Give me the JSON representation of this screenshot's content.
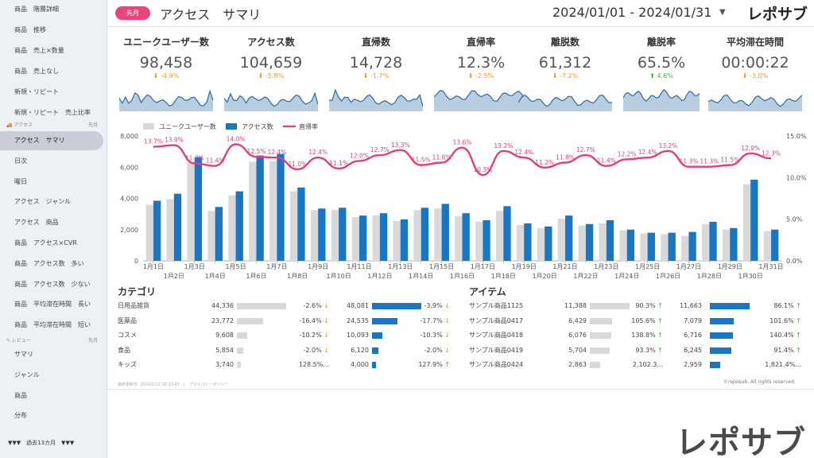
{
  "sidebar": {
    "items_top": [
      "商品　階層詳細",
      "商品　推移",
      "商品　売上×数量",
      "商品　売上なし",
      "新規・リピート",
      "新規・リピート　売上比率"
    ],
    "section_access": {
      "label": "アクセス",
      "period": "先月"
    },
    "items_access": [
      "アクセス　サマリ",
      "日次",
      "曜日",
      "アクセス　ジャンル",
      "アクセス　商品",
      "商品　アクセス×CVR",
      "商品　アクセス数　多い",
      "商品　アクセス数　少ない",
      "商品　平均滞在時間　長い",
      "商品　平均滞在時間　短い"
    ],
    "section_review": {
      "label": "レビュー",
      "period": "先月"
    },
    "items_review": [
      "サマリ",
      "ジャンル",
      "商品",
      "分布"
    ],
    "footer": "▼▼▼　過去13カ月　▼▼▼"
  },
  "header": {
    "badge": "先月",
    "title": "アクセス　サマリ",
    "date_range": "2024/01/01 - 2024/01/31",
    "brand": "レポサブ"
  },
  "kpis": [
    {
      "label": "ユニークユーザー数",
      "value": "98,458",
      "change": "-4.9%",
      "dir": "down"
    },
    {
      "label": "アクセス数",
      "value": "104,659",
      "change": "-5.8%",
      "dir": "down"
    },
    {
      "label": "直帰数",
      "value": "14,728",
      "change": "-1.7%",
      "dir": "down"
    },
    {
      "label": "直帰率",
      "value": "12.3%",
      "change": "-2.5%",
      "dir": "down"
    },
    {
      "label": "離脱数",
      "value": "61,312",
      "change": "-7.2%",
      "dir": "down"
    },
    {
      "label": "離脱率",
      "value": "65.5%",
      "change": "4.6%",
      "dir": "up"
    },
    {
      "label": "平均滞在時間",
      "value": "00:00:22",
      "change": "-3.0%",
      "dir": "down"
    }
  ],
  "chart_data": {
    "type": "bar",
    "categories": [
      "1月1日",
      "1月2日",
      "1月3日",
      "1月4日",
      "1月5日",
      "1月6日",
      "1月7日",
      "1月8日",
      "1月9日",
      "1月10日",
      "1月11日",
      "1月12日",
      "1月13日",
      "1月14日",
      "1月15日",
      "1月16日",
      "1月17日",
      "1月18日",
      "1月19日",
      "1月20日",
      "1月21日",
      "1月22日",
      "1月23日",
      "1月24日",
      "1月25日",
      "1月26日",
      "1月27日",
      "1月28日",
      "1月29日",
      "1月30日",
      "1月31日"
    ],
    "series": [
      {
        "name": "ユニークユーザー数",
        "type": "bar",
        "axis": "left",
        "color": "#d9d9d9",
        "values": [
          3600,
          3950,
          6350,
          3200,
          4200,
          6350,
          6400,
          4450,
          3250,
          3250,
          2800,
          2900,
          2550,
          3250,
          3350,
          2850,
          2500,
          3200,
          2300,
          2100,
          2700,
          2250,
          2400,
          1950,
          1750,
          1700,
          1600,
          2350,
          2000,
          4900,
          1900
        ]
      },
      {
        "name": "アクセス数",
        "type": "bar",
        "axis": "left",
        "color": "#1976c2",
        "values": [
          3850,
          4300,
          6650,
          3450,
          4450,
          6750,
          6850,
          4700,
          3350,
          3400,
          2900,
          3050,
          2650,
          3400,
          3650,
          3050,
          2600,
          3500,
          2400,
          2200,
          2900,
          2350,
          2600,
          2000,
          1800,
          1800,
          1850,
          2500,
          2100,
          5200,
          2000
        ]
      },
      {
        "name": "直帰率",
        "type": "line",
        "axis": "right",
        "color": "#e0407a",
        "values": [
          13.7,
          13.9,
          11.7,
          11.4,
          14.0,
          12.5,
          12.4,
          11.0,
          12.4,
          11.1,
          12.0,
          12.7,
          13.3,
          11.5,
          11.8,
          13.6,
          10.3,
          13.2,
          12.4,
          11.2,
          11.8,
          12.7,
          11.4,
          12.2,
          12.4,
          13.2,
          11.3,
          11.3,
          11.5,
          12.9,
          12.3
        ],
        "labels": [
          "13.7%",
          "13.9%",
          "11.7%",
          "11.4%",
          "14.0%",
          "12.5%",
          "12.4%",
          "11.0%",
          "12.4%",
          "11.1%",
          "12.0%",
          "12.7%",
          "13.3%",
          "11.5%",
          "11.8%",
          "13.6%",
          "10.3%",
          "13.2%",
          "12.4%",
          "11.2%",
          "11.8%",
          "12.7%",
          "11.4%",
          "12.2%",
          "12.4%",
          "13.2%",
          "11.3%",
          "11.3%",
          "11.5%",
          "12.9%",
          "12.3%"
        ]
      }
    ],
    "y_left": {
      "range": [
        0,
        8000
      ],
      "ticks": [
        "0",
        "2,000",
        "4,000",
        "6,000",
        "8,000"
      ]
    },
    "y_right": {
      "range": [
        0,
        15
      ],
      "ticks": [
        "0.0%",
        "5.0%",
        "10.0%",
        "15.0%"
      ]
    },
    "legend_placement": "top-left",
    "grid": false
  },
  "category_table": {
    "title": "カテゴリ",
    "rows": [
      {
        "name": "日用品雑貨",
        "v1": "44,336",
        "c1": "-2.6%",
        "d1": "down",
        "v2": "48,081",
        "c2": "-3.9%",
        "d2": "down",
        "f1": 1.0,
        "f2": 1.0
      },
      {
        "name": "医薬品",
        "v1": "23,772",
        "c1": "-16.4%",
        "d1": "down",
        "v2": "24,535",
        "c2": "-17.7%",
        "d2": "down",
        "f1": 0.536,
        "f2": 0.51
      },
      {
        "name": "コスメ",
        "v1": "9,608",
        "c1": "-10.2%",
        "d1": "down",
        "v2": "10,093",
        "c2": "-10.3%",
        "d2": "down",
        "f1": 0.217,
        "f2": 0.21
      },
      {
        "name": "食品",
        "v1": "5,854",
        "c1": "-2.0%",
        "d1": "down",
        "v2": "6,120",
        "c2": "-2.0%",
        "d2": "down",
        "f1": 0.132,
        "f2": 0.127
      },
      {
        "name": "キッズ",
        "v1": "3,740",
        "c1": "128.5%...",
        "d1": "none",
        "v2": "4,000",
        "c2": "127.9%",
        "d2": "up",
        "f1": 0.084,
        "f2": 0.083
      }
    ]
  },
  "item_table": {
    "title": "アイテム",
    "rows": [
      {
        "name": "サンプル商品1125",
        "v1": "11,388",
        "c1": "90.3%",
        "d1": "up",
        "v2": "11,663",
        "c2": "86.1%",
        "d2": "up",
        "f1": 1.0,
        "f2": 1.0
      },
      {
        "name": "サンプル商品0417",
        "v1": "6,429",
        "c1": "105.6%",
        "d1": "up",
        "v2": "7,079",
        "c2": "101.6%",
        "d2": "up",
        "f1": 0.565,
        "f2": 0.607
      },
      {
        "name": "サンプル商品0418",
        "v1": "6,076",
        "c1": "138.8%",
        "d1": "up",
        "v2": "6,716",
        "c2": "140.4%",
        "d2": "up",
        "f1": 0.534,
        "f2": 0.576
      },
      {
        "name": "サンプル商品0419",
        "v1": "5,704",
        "c1": "93.3%",
        "d1": "up",
        "v2": "6,245",
        "c2": "91.4%",
        "d2": "up",
        "f1": 0.501,
        "f2": 0.535
      },
      {
        "name": "サンプル商品0424",
        "v1": "2,863",
        "c1": "2,102.3...",
        "d1": "none",
        "v2": "2,959",
        "c2": "1,821.4%...",
        "d2": "none",
        "f1": 0.251,
        "f2": 0.254
      }
    ]
  },
  "footnote": "最終更新日: 2024/2/13 18:33:47　|　プライバシーポリシー",
  "copyright": "©reposub. All rights reserved.",
  "big_brand": "レポサブ"
}
